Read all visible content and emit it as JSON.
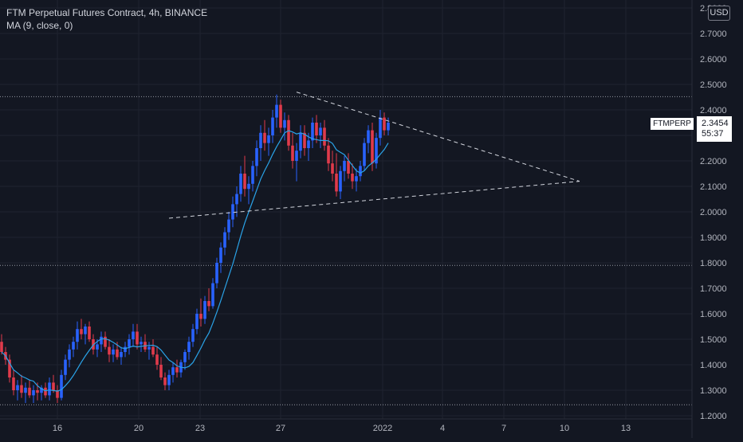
{
  "legend": {
    "title": "FTM Perpetual Futures Contract, 4h, BINANCE",
    "indicator": "MA (9, close, 0)"
  },
  "currency_badge": "USD",
  "last_price": {
    "symbol": "FTMPERP",
    "price": "2.3454",
    "countdown": "55:37"
  },
  "colors": {
    "background": "#131722",
    "up": "#2962ff",
    "down": "#e03a4b",
    "ma": "#2aa3e8",
    "grid": "#1f2330",
    "axis_text": "#b2b5be",
    "trendline": "#d1d4dc"
  },
  "chart_data": {
    "type": "candlestick",
    "title": "FTM Perpetual Futures Contract, 4h, BINANCE",
    "y_ticks": [
      "1.2000",
      "1.3000",
      "1.4000",
      "1.5000",
      "1.6000",
      "1.7000",
      "1.8000",
      "1.9000",
      "2.0000",
      "2.1000",
      "2.2000",
      "2.3000",
      "2.4000",
      "2.5000",
      "2.6000",
      "2.7000",
      "2.8000"
    ],
    "x_ticks": [
      "16",
      "20",
      "23",
      "27",
      "2022",
      "4",
      "7",
      "10",
      "13"
    ],
    "ylim": [
      1.2,
      2.8
    ],
    "ma_series": {
      "name": "MA (9, close, 0)",
      "color": "#2aa3e8"
    },
    "horizontal_levels": [
      2.452,
      1.79,
      1.243
    ],
    "candles": [
      [
        1.49,
        1.52,
        1.44,
        1.45
      ],
      [
        1.45,
        1.47,
        1.4,
        1.42
      ],
      [
        1.42,
        1.44,
        1.33,
        1.35
      ],
      [
        1.35,
        1.38,
        1.28,
        1.3
      ],
      [
        1.3,
        1.34,
        1.26,
        1.32
      ],
      [
        1.32,
        1.36,
        1.27,
        1.29
      ],
      [
        1.29,
        1.33,
        1.25,
        1.31
      ],
      [
        1.31,
        1.34,
        1.27,
        1.28
      ],
      [
        1.28,
        1.32,
        1.25,
        1.3
      ],
      [
        1.3,
        1.33,
        1.26,
        1.29
      ],
      [
        1.29,
        1.32,
        1.26,
        1.31
      ],
      [
        1.31,
        1.33,
        1.27,
        1.28
      ],
      [
        1.28,
        1.35,
        1.26,
        1.33
      ],
      [
        1.33,
        1.36,
        1.29,
        1.3
      ],
      [
        1.3,
        1.32,
        1.25,
        1.27
      ],
      [
        1.27,
        1.38,
        1.26,
        1.36
      ],
      [
        1.36,
        1.44,
        1.34,
        1.42
      ],
      [
        1.42,
        1.48,
        1.39,
        1.46
      ],
      [
        1.46,
        1.51,
        1.43,
        1.49
      ],
      [
        1.49,
        1.57,
        1.46,
        1.54
      ],
      [
        1.54,
        1.58,
        1.5,
        1.52
      ],
      [
        1.52,
        1.56,
        1.48,
        1.55
      ],
      [
        1.55,
        1.57,
        1.49,
        1.5
      ],
      [
        1.5,
        1.52,
        1.44,
        1.46
      ],
      [
        1.46,
        1.5,
        1.43,
        1.48
      ],
      [
        1.48,
        1.53,
        1.45,
        1.51
      ],
      [
        1.51,
        1.53,
        1.46,
        1.47
      ],
      [
        1.47,
        1.5,
        1.41,
        1.44
      ],
      [
        1.44,
        1.48,
        1.41,
        1.46
      ],
      [
        1.46,
        1.49,
        1.42,
        1.43
      ],
      [
        1.43,
        1.47,
        1.4,
        1.45
      ],
      [
        1.45,
        1.49,
        1.43,
        1.47
      ],
      [
        1.47,
        1.52,
        1.44,
        1.5
      ],
      [
        1.5,
        1.56,
        1.47,
        1.53
      ],
      [
        1.53,
        1.56,
        1.46,
        1.48
      ],
      [
        1.48,
        1.51,
        1.45,
        1.49
      ],
      [
        1.49,
        1.52,
        1.45,
        1.46
      ],
      [
        1.46,
        1.49,
        1.42,
        1.47
      ],
      [
        1.47,
        1.5,
        1.43,
        1.44
      ],
      [
        1.44,
        1.47,
        1.38,
        1.4
      ],
      [
        1.4,
        1.43,
        1.34,
        1.35
      ],
      [
        1.35,
        1.37,
        1.3,
        1.32
      ],
      [
        1.32,
        1.38,
        1.3,
        1.36
      ],
      [
        1.36,
        1.41,
        1.33,
        1.39
      ],
      [
        1.39,
        1.42,
        1.35,
        1.37
      ],
      [
        1.37,
        1.42,
        1.35,
        1.41
      ],
      [
        1.41,
        1.46,
        1.38,
        1.45
      ],
      [
        1.45,
        1.51,
        1.42,
        1.49
      ],
      [
        1.49,
        1.56,
        1.47,
        1.54
      ],
      [
        1.54,
        1.62,
        1.52,
        1.6
      ],
      [
        1.6,
        1.66,
        1.55,
        1.58
      ],
      [
        1.58,
        1.67,
        1.56,
        1.65
      ],
      [
        1.65,
        1.7,
        1.61,
        1.63
      ],
      [
        1.63,
        1.74,
        1.62,
        1.72
      ],
      [
        1.72,
        1.82,
        1.7,
        1.8
      ],
      [
        1.8,
        1.88,
        1.76,
        1.86
      ],
      [
        1.86,
        1.94,
        1.83,
        1.92
      ],
      [
        1.92,
        2.0,
        1.89,
        1.97
      ],
      [
        1.97,
        2.06,
        1.94,
        2.03
      ],
      [
        2.03,
        2.1,
        1.98,
        2.07
      ],
      [
        2.07,
        2.18,
        2.04,
        2.15
      ],
      [
        2.15,
        2.22,
        2.06,
        2.09
      ],
      [
        2.09,
        2.14,
        2.03,
        2.11
      ],
      [
        2.11,
        2.2,
        2.08,
        2.18
      ],
      [
        2.18,
        2.28,
        2.14,
        2.25
      ],
      [
        2.25,
        2.34,
        2.2,
        2.31
      ],
      [
        2.31,
        2.36,
        2.24,
        2.27
      ],
      [
        2.27,
        2.33,
        2.22,
        2.3
      ],
      [
        2.3,
        2.4,
        2.27,
        2.37
      ],
      [
        2.37,
        2.46,
        2.33,
        2.42
      ],
      [
        2.42,
        2.44,
        2.31,
        2.33
      ],
      [
        2.33,
        2.39,
        2.28,
        2.36
      ],
      [
        2.36,
        2.38,
        2.24,
        2.26
      ],
      [
        2.26,
        2.31,
        2.17,
        2.2
      ],
      [
        2.2,
        2.27,
        2.12,
        2.24
      ],
      [
        2.24,
        2.34,
        2.21,
        2.31
      ],
      [
        2.31,
        2.34,
        2.22,
        2.25
      ],
      [
        2.25,
        2.31,
        2.2,
        2.28
      ],
      [
        2.28,
        2.37,
        2.25,
        2.35
      ],
      [
        2.35,
        2.38,
        2.27,
        2.3
      ],
      [
        2.3,
        2.35,
        2.25,
        2.33
      ],
      [
        2.33,
        2.36,
        2.24,
        2.26
      ],
      [
        2.26,
        2.29,
        2.16,
        2.19
      ],
      [
        2.19,
        2.24,
        2.12,
        2.15
      ],
      [
        2.15,
        2.23,
        2.06,
        2.08
      ],
      [
        2.08,
        2.18,
        2.05,
        2.16
      ],
      [
        2.16,
        2.22,
        2.12,
        2.2
      ],
      [
        2.2,
        2.23,
        2.13,
        2.15
      ],
      [
        2.15,
        2.19,
        2.09,
        2.12
      ],
      [
        2.12,
        2.17,
        2.08,
        2.14
      ],
      [
        2.14,
        2.2,
        2.12,
        2.18
      ],
      [
        2.18,
        2.29,
        2.16,
        2.27
      ],
      [
        2.27,
        2.34,
        2.23,
        2.32
      ],
      [
        2.32,
        2.35,
        2.16,
        2.19
      ],
      [
        2.19,
        2.31,
        2.17,
        2.29
      ],
      [
        2.29,
        2.4,
        2.26,
        2.37
      ],
      [
        2.37,
        2.39,
        2.3,
        2.32
      ],
      [
        2.32,
        2.37,
        2.3,
        2.35
      ]
    ],
    "trendlines": [
      {
        "style": "dashed",
        "from": [
          74,
          2.47
        ],
        "to": [
          145,
          2.12
        ]
      },
      {
        "style": "dashed",
        "from": [
          42,
          1.975
        ],
        "to": [
          145,
          2.12
        ]
      }
    ]
  }
}
